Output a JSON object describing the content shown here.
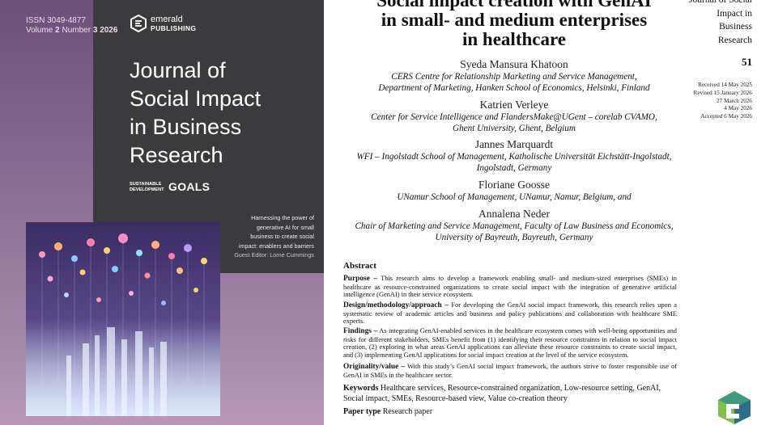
{
  "cover": {
    "issn": "ISSN 3049-4877",
    "volume_line": {
      "volume_label": "Volume",
      "volume": "2",
      "number_label": "Number",
      "number": "3",
      "year": "2026"
    },
    "publisher_top": "emerald",
    "publisher_bottom": "PUBLISHING",
    "journal_lines": [
      "Journal of",
      "Social Impact",
      "in Business",
      "Research"
    ],
    "sdg_small": [
      "SUSTAINABLE",
      "DEVELOPMENT"
    ],
    "sdg_big": "GOALS",
    "description_lines": [
      "Harnessing the power of",
      "generative AI for small",
      "business to create social",
      "impact: enablers and barriers"
    ],
    "guest_editor": "Guest Editor: Lorne Cummings",
    "colors": {
      "purple": "#8a6a92",
      "dark_panel": "#3b3b3d"
    }
  },
  "article": {
    "title_lines": [
      "Social impact creation with GenAI",
      "in small- and medium enterprises",
      "in healthcare"
    ],
    "authors": [
      {
        "name": "Syeda Mansura Khatoon",
        "affiliation": [
          "CERS Centre for Relationship Marketing and Service Management,",
          "Department of Marketing, Hanken School of Economics, Helsinki, Finland"
        ]
      },
      {
        "name": "Katrien Verleye",
        "affiliation": [
          "Center for Service Intelligence and FlandersMake@UGent – corelab CVAMO,",
          "Ghent University, Ghent, Belgium"
        ]
      },
      {
        "name": "Jannes Marquardt",
        "affiliation": [
          "WFI – Ingolstadt School of Management, Katholische Universität Eichstätt-Ingolstadt,",
          "Ingolstadt, Germany"
        ]
      },
      {
        "name": "Floriane Goosse",
        "affiliation": [
          "UNamur School of Management, UNamur, Namur, Belgium, and"
        ]
      },
      {
        "name": "Annalena Neder",
        "affiliation": [
          "Chair of Marketing and Service Management, Faculty of Law Business and Economics,",
          "University of Bayreuth, Bayreuth, Germany"
        ]
      }
    ],
    "abstract_heading": "Abstract",
    "abstract": [
      {
        "label": "Purpose –",
        "text": "This research aims to develop a framework enabling small- and medium-sized enterprises (SMEs) in healthcare as resource-constrained organizations to create social impact with the integration of generative artificial intelligence (GenAI) in their service ecosystem."
      },
      {
        "label": "Design/methodology/approach –",
        "text": "For developing the GenAI social impact framework, this research relies upon a systematic review of academic articles and business and policy publications and collaboration with healthcare SME experts."
      },
      {
        "label": "Findings –",
        "text": "As integrating GenAI-enabled services in the healthcare ecosystem comes with well-being opportunities and risks for different stakeholders, SMEs benefit from (1) identifying their resource constraints in relation to social impact creation, (2) exploring in what areas GenAI applications can alleviate these resource constraints to create social impact, and (3) implementing GenAI applications for social impact creation at the level of the service ecosystem."
      },
      {
        "label": "Originality/value –",
        "text": "With this study’s GenAI social impact framework, the authors strive to foster responsible use of GenAI in SMEs in the healthcare sector."
      }
    ],
    "keywords_label": "Keywords",
    "keywords": "Healthcare services, Resource-constrained organization, Low-resource setting, GenAI, Social impact, SMEs, Resource-based view, Value co-creation theory",
    "paper_type_label": "Paper type",
    "paper_type": "Research paper"
  },
  "sidebar": {
    "journal_lines": [
      "Journal of Social",
      "Impact in",
      "Business",
      "Research"
    ],
    "page_number": "51",
    "dates": [
      "Received 14 May 2025",
      "Revised 15 January 2026",
      "27 March 2026",
      "4 May 2026",
      "Accepted 6 May 2026"
    ]
  }
}
